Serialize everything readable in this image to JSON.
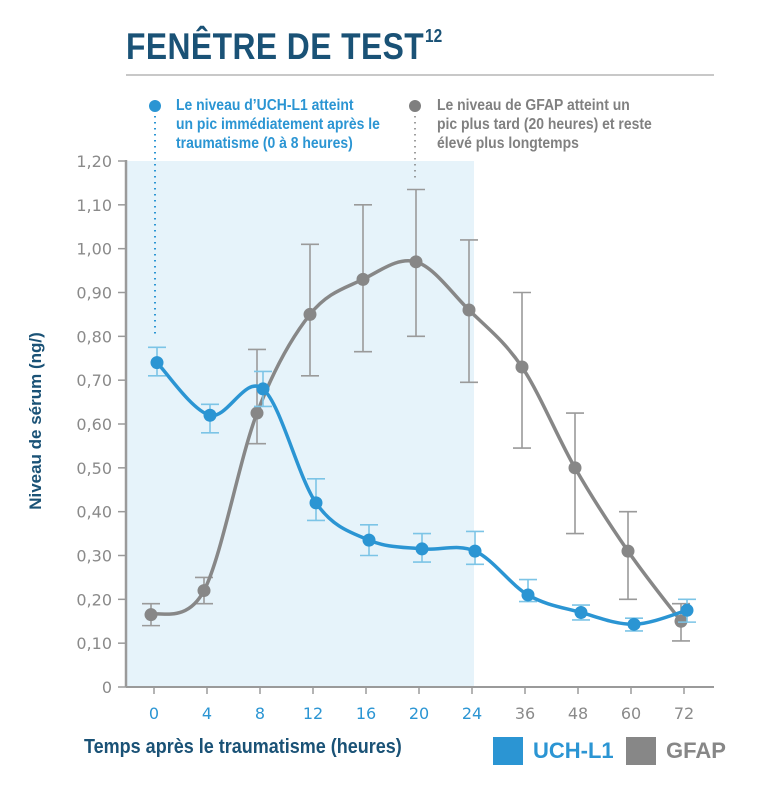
{
  "header": {
    "title": "FENÊTRE DE TEST",
    "title_superscript": "12"
  },
  "annotations": {
    "uch": {
      "lines": [
        "Le niveau d’UCH-L1 atteint",
        "un pic immédiatement après le",
        "traumatisme (0 à 8 heures)"
      ],
      "color": "#2b95d3"
    },
    "gfap": {
      "lines": [
        "Le niveau de GFAP atteint un",
        "pic plus tard (20 heures) et reste",
        "élevé plus longtemps"
      ],
      "color": "#808080"
    }
  },
  "legend": {
    "uch_label": "UCH-L1",
    "gfap_label": "GFAP",
    "uch_color": "#2b95d3",
    "gfap_color": "#878787"
  },
  "colors": {
    "title": "#1a5276",
    "uch": "#2b95d3",
    "uch_error": "#7cc4e6",
    "gfap": "#878787",
    "gfap_error": "#9a9a9a",
    "shade": "#e6f3fa",
    "grid": "#8e8e8e",
    "axis": "#9a9a9a",
    "tick_label": "#8a8a8a"
  },
  "chart_data": {
    "type": "line",
    "title": "FENÊTRE DE TEST",
    "xlabel": "Temps après le traumatisme (heures)",
    "ylabel": "Niveau de sérum (ng/)",
    "ylim": [
      0,
      1.2
    ],
    "yticks": [
      "0",
      "0,10",
      "0,20",
      "0,30",
      "0,40",
      "0,50",
      "0,60",
      "0,70",
      "0,80",
      "0,90",
      "1,00",
      "1,10",
      "1,20"
    ],
    "categories": [
      "0",
      "4",
      "8",
      "12",
      "16",
      "20",
      "24",
      "36",
      "48",
      "60",
      "72"
    ],
    "x_tick_highlight_until": "24",
    "shaded_region": {
      "from": "0",
      "to": "24",
      "label": "test window"
    },
    "grid": true,
    "legend_position": "bottom-right",
    "series": [
      {
        "name": "UCH-L1",
        "values": [
          0.74,
          0.62,
          0.68,
          0.42,
          0.335,
          0.315,
          0.31,
          0.21,
          0.17,
          0.143,
          0.175
        ],
        "error_low": [
          0.71,
          0.58,
          0.64,
          0.38,
          0.3,
          0.285,
          0.28,
          0.195,
          0.153,
          0.128,
          0.148
        ],
        "error_high": [
          0.775,
          0.645,
          0.72,
          0.475,
          0.37,
          0.35,
          0.355,
          0.245,
          0.187,
          0.157,
          0.2
        ]
      },
      {
        "name": "GFAP",
        "values": [
          0.165,
          0.22,
          0.625,
          0.85,
          0.93,
          0.97,
          0.86,
          0.73,
          0.5,
          0.31,
          0.15
        ],
        "error_low": [
          0.14,
          0.19,
          0.555,
          0.71,
          0.765,
          0.8,
          0.695,
          0.545,
          0.35,
          0.2,
          0.105
        ],
        "error_high": [
          0.19,
          0.25,
          0.77,
          1.01,
          1.1,
          1.135,
          1.02,
          0.9,
          0.625,
          0.4,
          0.19
        ]
      }
    ],
    "annotations": [
      {
        "series": "UCH-L1",
        "x": "0",
        "text": "Le niveau d’UCH-L1 atteint un pic immédiatement après le traumatisme (0 à 8 heures)"
      },
      {
        "series": "GFAP",
        "x": "20",
        "text": "Le niveau de GFAP atteint un pic plus tard (20 heures) et reste élevé plus longtemps"
      }
    ]
  }
}
